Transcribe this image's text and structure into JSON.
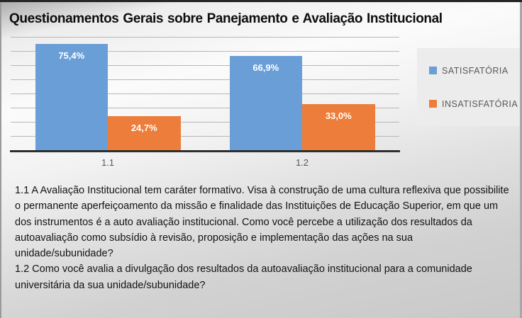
{
  "slide": {
    "title": "Questionamentos Gerais sobre Panejamento e Avaliação Institucional"
  },
  "chart_data": {
    "type": "bar",
    "title": "Questionamentos Gerais sobre Panejamento e Avaliação Institucional",
    "categories": [
      "1.1",
      "1.2"
    ],
    "series": [
      {
        "name": "SATISFATÓRIA",
        "color": "#6A9ED6",
        "values": [
          75.4,
          66.9
        ],
        "labels": [
          "75,4%",
          "66,9%"
        ]
      },
      {
        "name": "INSATISFATÓRIA",
        "color": "#ED7D3A",
        "values": [
          24.7,
          33.0
        ],
        "labels": [
          "24,7%",
          "33,0%"
        ]
      }
    ],
    "xlabel": "",
    "ylabel": "",
    "ylim": [
      0,
      80
    ],
    "grid_step": 10,
    "grid": true,
    "legend_position": "right",
    "value_label_format": "percent-comma-decimal",
    "colors": {
      "axis": "#2e2e2e",
      "gridline": "#b7b7b7",
      "bar_label_text": "#ffffff",
      "legend_text": "#595959"
    }
  },
  "notes": {
    "question_1_1": "1.1 A Avaliação Institucional tem caráter formativo. Visa à construção de uma cultura reflexiva que possibilite o permanente aperfeiçoamento da missão e finalidade das Instituições de Educação Superior, em que um dos instrumentos é a auto avaliação institucional. Como você percebe a utilização dos resultados da autoavaliação como subsídio à revisão, proposição e implementação das ações na sua unidade/subunidade?",
    "question_1_2": "1.2 Como você avalia a divulgação dos resultados da autoavaliação institucional para a comunidade universitária da sua unidade/subunidade?"
  }
}
